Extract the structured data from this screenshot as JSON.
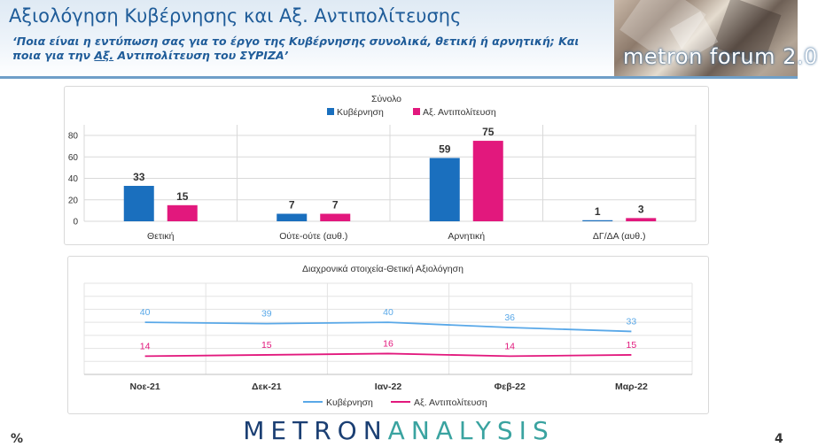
{
  "header": {
    "title": "Αξιολόγηση Κυβέρνησης και Αξ. Αντιπολίτευσης",
    "subtitle_part1": "‘Ποια είναι η εντύπωση σας για το έργο της Κυβέρνησης συνολικά, θετική ή αρνητική; Και ποια για την ",
    "subtitle_underlined": "Αξ.",
    "subtitle_part2": " Αντιπολίτευση του ΣΥΡΙΖΑ’",
    "logo_text": "metron forum 2.0"
  },
  "colors": {
    "government": "#1a6fbe",
    "opposition": "#e2187d",
    "gov_line": "#59a8e8",
    "title_blue": "#1f5c99"
  },
  "chart_data": [
    {
      "type": "bar",
      "title": "Σύνολο",
      "categories": [
        "Θετική",
        "Ούτε-ούτε (αυθ.)",
        "Αρνητική",
        "ΔΓ/ΔΑ (αυθ.)"
      ],
      "series": [
        {
          "name": "Κυβέρνηση",
          "values": [
            33,
            7,
            59,
            1
          ]
        },
        {
          "name": "Αξ. Αντιπολίτευση",
          "values": [
            15,
            7,
            75,
            3
          ]
        }
      ],
      "ylim": [
        0,
        80
      ],
      "yticks": [
        "0",
        "20",
        "40",
        "60",
        "80"
      ],
      "legend": "top",
      "grid": true
    },
    {
      "type": "line",
      "title": "Διαχρονικά στοιχεία-Θετική Αξιολόγηση",
      "categories": [
        "Νοε-21",
        "Δεκ-21",
        "Ιαν-22",
        "Φεβ-22",
        "Μαρ-22"
      ],
      "series": [
        {
          "name": "Κυβέρνηση",
          "values": [
            40,
            39,
            40,
            36,
            33
          ]
        },
        {
          "name": "Αξ. Αντιπολίτευση",
          "values": [
            14,
            15,
            16,
            14,
            15
          ]
        }
      ],
      "ylim": [
        0,
        70
      ],
      "legend": "bottom",
      "grid": true
    }
  ],
  "footer": {
    "brand_part1": "METRON",
    "brand_part2": "ANALYSIS",
    "percent_sign": "%",
    "page_number": "4"
  }
}
